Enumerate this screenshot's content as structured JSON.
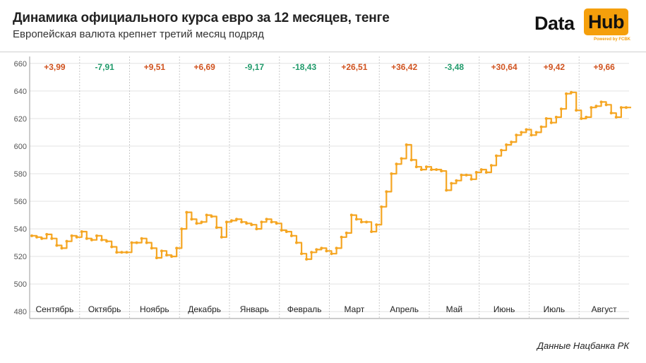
{
  "header": {
    "title": "Динамика официального курса евро за 12 месяцев, тенге",
    "subtitle": "Европейская валюта крепнет третий месяц подряд"
  },
  "logo": {
    "word1": "Data",
    "word2": "Hub",
    "powered": "Powered by FCBK",
    "accent": "#f59f0b"
  },
  "source": "Данные Нацбанка РК",
  "colors": {
    "line": "#f5a623",
    "positive": "#d0521e",
    "negative": "#1f9a6a",
    "grid": "#e3e3e3",
    "month_divider": "#c8c8c8"
  },
  "chart_data": {
    "type": "line",
    "title": "Динамика официального курса евро за 12 месяцев, тенге",
    "ylim": [
      475,
      665
    ],
    "yticks": [
      480,
      500,
      520,
      540,
      560,
      580,
      600,
      620,
      640,
      660
    ],
    "grid": true,
    "legend": "none",
    "months": [
      {
        "label": "Сентябрь",
        "change": "+3,99",
        "sign": "pos"
      },
      {
        "label": "Октябрь",
        "change": "-7,91",
        "sign": "neg"
      },
      {
        "label": "Ноябрь",
        "change": "+9,51",
        "sign": "pos"
      },
      {
        "label": "Декабрь",
        "change": "+6,69",
        "sign": "pos"
      },
      {
        "label": "Январь",
        "change": "-9,17",
        "sign": "neg"
      },
      {
        "label": "Февраль",
        "change": "-18,43",
        "sign": "neg"
      },
      {
        "label": "Март",
        "change": "+26,51",
        "sign": "pos"
      },
      {
        "label": "Апрель",
        "change": "+36,42",
        "sign": "pos"
      },
      {
        "label": "Май",
        "change": "-3,48",
        "sign": "neg"
      },
      {
        "label": "Июнь",
        "change": "+30,64",
        "sign": "pos"
      },
      {
        "label": "Июль",
        "change": "+9,42",
        "sign": "pos"
      },
      {
        "label": "Август",
        "change": "+9,66",
        "sign": "pos"
      }
    ],
    "series": [
      {
        "values": [
          [
            0.0,
            535
          ],
          [
            0.1,
            534
          ],
          [
            0.2,
            533
          ],
          [
            0.3,
            536
          ],
          [
            0.4,
            533
          ],
          [
            0.5,
            528
          ],
          [
            0.6,
            526
          ],
          [
            0.7,
            531
          ],
          [
            0.8,
            535
          ],
          [
            0.9,
            534
          ],
          [
            1.0,
            538
          ],
          [
            1.1,
            533
          ],
          [
            1.2,
            532
          ],
          [
            1.3,
            535
          ],
          [
            1.4,
            532
          ],
          [
            1.5,
            531
          ],
          [
            1.6,
            527
          ],
          [
            1.7,
            523
          ],
          [
            1.8,
            523
          ],
          [
            1.9,
            523
          ],
          [
            2.0,
            530
          ],
          [
            2.1,
            530
          ],
          [
            2.2,
            533
          ],
          [
            2.3,
            530
          ],
          [
            2.4,
            526
          ],
          [
            2.5,
            519
          ],
          [
            2.6,
            524
          ],
          [
            2.7,
            521
          ],
          [
            2.8,
            520
          ],
          [
            2.9,
            526
          ],
          [
            3.0,
            540
          ],
          [
            3.1,
            552
          ],
          [
            3.2,
            547
          ],
          [
            3.3,
            544
          ],
          [
            3.4,
            545
          ],
          [
            3.5,
            550
          ],
          [
            3.6,
            549
          ],
          [
            3.7,
            541
          ],
          [
            3.8,
            534
          ],
          [
            3.9,
            545
          ],
          [
            4.0,
            546
          ],
          [
            4.1,
            547
          ],
          [
            4.2,
            545
          ],
          [
            4.3,
            544
          ],
          [
            4.4,
            543
          ],
          [
            4.5,
            540
          ],
          [
            4.6,
            545
          ],
          [
            4.7,
            547
          ],
          [
            4.8,
            545
          ],
          [
            4.9,
            544
          ],
          [
            5.0,
            539
          ],
          [
            5.1,
            538
          ],
          [
            5.2,
            535
          ],
          [
            5.3,
            530
          ],
          [
            5.4,
            522
          ],
          [
            5.5,
            518
          ],
          [
            5.6,
            523
          ],
          [
            5.7,
            525
          ],
          [
            5.8,
            526
          ],
          [
            5.9,
            524
          ],
          [
            6.0,
            522
          ],
          [
            6.1,
            526
          ],
          [
            6.2,
            534
          ],
          [
            6.3,
            537
          ],
          [
            6.4,
            550
          ],
          [
            6.5,
            547
          ],
          [
            6.6,
            545
          ],
          [
            6.7,
            545
          ],
          [
            6.8,
            538
          ],
          [
            6.9,
            543
          ],
          [
            7.0,
            556
          ],
          [
            7.1,
            567
          ],
          [
            7.2,
            580
          ],
          [
            7.3,
            587
          ],
          [
            7.4,
            591
          ],
          [
            7.5,
            601
          ],
          [
            7.6,
            590
          ],
          [
            7.7,
            585
          ],
          [
            7.8,
            583
          ],
          [
            7.9,
            585
          ],
          [
            8.0,
            583
          ],
          [
            8.1,
            583
          ],
          [
            8.2,
            582
          ],
          [
            8.3,
            568
          ],
          [
            8.4,
            573
          ],
          [
            8.5,
            575
          ],
          [
            8.6,
            579
          ],
          [
            8.7,
            579
          ],
          [
            8.8,
            576
          ],
          [
            8.9,
            581
          ],
          [
            9.0,
            583
          ],
          [
            9.1,
            581
          ],
          [
            9.2,
            586
          ],
          [
            9.3,
            593
          ],
          [
            9.4,
            597
          ],
          [
            9.5,
            601
          ],
          [
            9.6,
            603
          ],
          [
            9.7,
            608
          ],
          [
            9.8,
            610
          ],
          [
            9.9,
            612
          ],
          [
            10.0,
            608
          ],
          [
            10.1,
            610
          ],
          [
            10.2,
            614
          ],
          [
            10.3,
            620
          ],
          [
            10.4,
            617
          ],
          [
            10.5,
            621
          ],
          [
            10.6,
            627
          ],
          [
            10.7,
            638
          ],
          [
            10.8,
            639
          ],
          [
            10.9,
            626
          ],
          [
            11.0,
            620
          ],
          [
            11.1,
            621
          ],
          [
            11.2,
            628
          ],
          [
            11.3,
            629
          ],
          [
            11.4,
            632
          ],
          [
            11.5,
            630
          ],
          [
            11.6,
            624
          ],
          [
            11.7,
            621
          ],
          [
            11.8,
            628
          ],
          [
            11.9,
            628
          ]
        ]
      }
    ]
  }
}
